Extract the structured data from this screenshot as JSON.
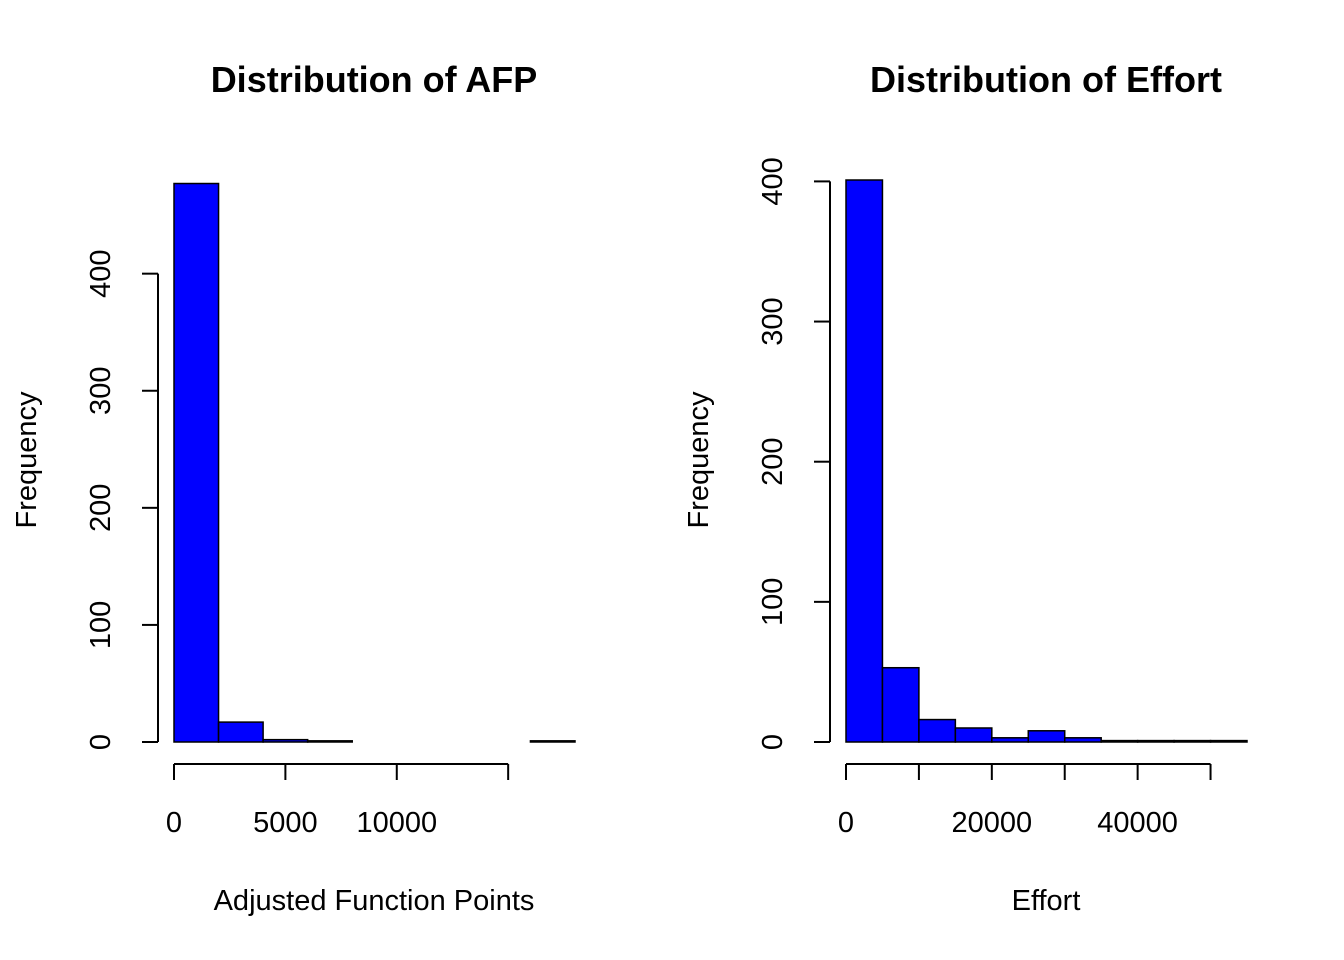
{
  "chart_data": [
    {
      "type": "bar",
      "title": "Distribution of AFP",
      "xlabel": "Adjusted Function Points",
      "ylabel": "Frequency",
      "bar_color": "#0000ff",
      "bin_edges": [
        0,
        2000,
        4000,
        6000,
        8000,
        10000,
        12000,
        14000,
        16000,
        18000
      ],
      "values": [
        477,
        17,
        2,
        1,
        0,
        0,
        0,
        0,
        1
      ],
      "xlim": [
        0,
        18000
      ],
      "ylim": [
        0,
        480
      ],
      "x_ticks": [
        0,
        5000,
        10000,
        15000
      ],
      "x_tick_labels": [
        "0",
        "5000",
        "10000",
        ""
      ],
      "y_ticks": [
        0,
        100,
        200,
        300,
        400
      ],
      "y_tick_labels": [
        "0",
        "100",
        "200",
        "300",
        "400"
      ],
      "grid": false,
      "legend": "none"
    },
    {
      "type": "bar",
      "title": "Distribution of Effort",
      "xlabel": "Effort",
      "ylabel": "Frequency",
      "bar_color": "#0000ff",
      "bin_edges": [
        0,
        5000,
        10000,
        15000,
        20000,
        25000,
        30000,
        35000,
        40000,
        45000,
        50000,
        55000
      ],
      "values": [
        401,
        53,
        16,
        10,
        3,
        8,
        3,
        1,
        1,
        1,
        1
      ],
      "xlim": [
        0,
        55000
      ],
      "ylim": [
        0,
        401
      ],
      "x_ticks": [
        0,
        10000,
        20000,
        30000,
        40000,
        50000
      ],
      "x_tick_labels": [
        "0",
        "",
        "20000",
        "",
        "40000",
        ""
      ],
      "y_ticks": [
        0,
        100,
        200,
        300,
        400
      ],
      "y_tick_labels": [
        "0",
        "100",
        "200",
        "300",
        "400"
      ],
      "grid": false,
      "legend": "none"
    }
  ]
}
